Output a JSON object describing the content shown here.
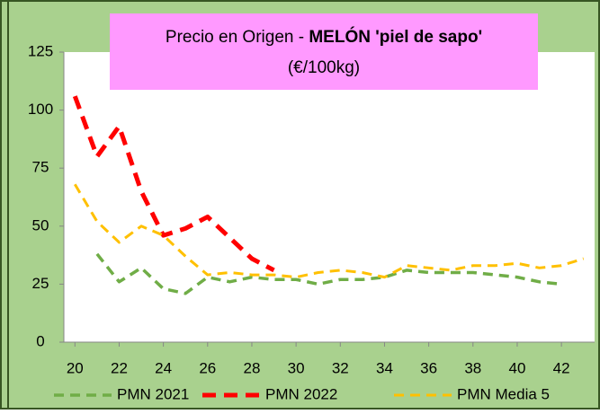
{
  "chart_data": {
    "type": "line",
    "title": "Precio en Origen - MELÓN 'piel de sapo'",
    "subtitle": "(€/100kg)",
    "x": [
      20,
      21,
      22,
      23,
      24,
      25,
      26,
      27,
      28,
      29,
      30,
      31,
      32,
      33,
      34,
      35,
      36,
      37,
      38,
      39,
      40,
      41,
      42,
      43
    ],
    "series": [
      {
        "name": "PMN 2021",
        "color": "#70ad47",
        "values": [
          null,
          38,
          26,
          32,
          23,
          21,
          28,
          26,
          28,
          27,
          27,
          25,
          27,
          27,
          28,
          31,
          30,
          30,
          30,
          29,
          28,
          26,
          25,
          null
        ]
      },
      {
        "name": "PMN 2022",
        "color": "#ff0000",
        "values": [
          106,
          80,
          93,
          65,
          46,
          49,
          54,
          45,
          36,
          31,
          null,
          null,
          null,
          null,
          null,
          null,
          null,
          null,
          null,
          null,
          null,
          null,
          null,
          null
        ]
      },
      {
        "name": "PMN Media 5",
        "color": "#ffc000",
        "values": [
          68,
          52,
          43,
          50,
          46,
          37,
          29,
          30,
          29,
          29,
          28,
          30,
          31,
          30,
          28,
          33,
          32,
          31,
          33,
          33,
          34,
          32,
          33,
          36
        ]
      }
    ],
    "xlim": [
      19.5,
      43.5
    ],
    "xticks": [
      20,
      22,
      24,
      26,
      28,
      30,
      32,
      34,
      36,
      38,
      40,
      42
    ],
    "ylim": [
      0,
      125
    ],
    "yticks": [
      0,
      25,
      50,
      75,
      100,
      125
    ],
    "legend": "bottom"
  }
}
